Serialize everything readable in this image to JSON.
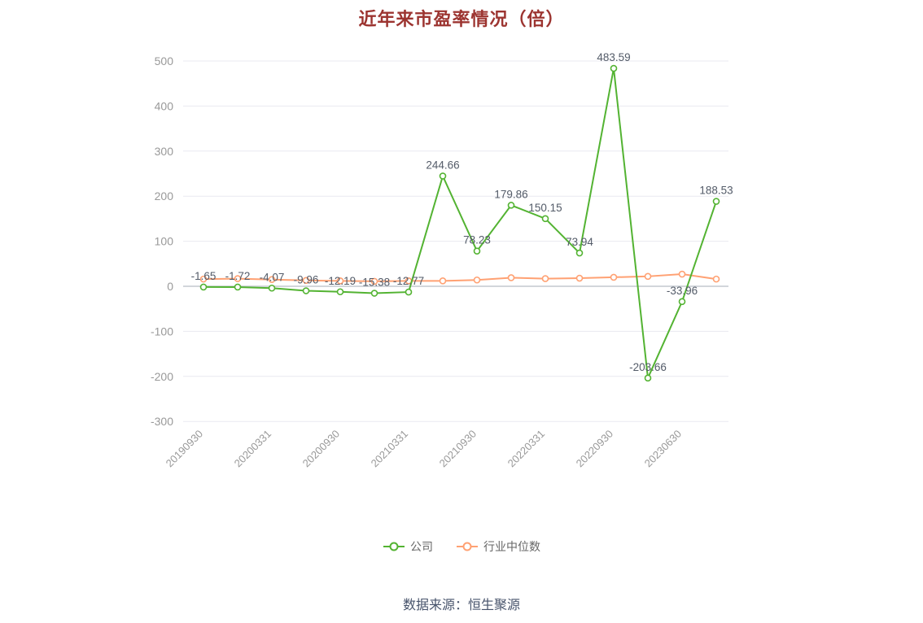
{
  "title": "近年来市盈率情况（倍）",
  "source": "数据来源：恒生聚源",
  "legend": {
    "company": "公司",
    "industry_median": "行业中位数"
  },
  "colors": {
    "title": "#9c3430",
    "company_series": "#53b332",
    "industry_series": "#ffa173",
    "axis_text": "#999999",
    "data_label": "#535b68",
    "grid_line": "#e9e9f0",
    "zero_line": "#c4c8cf",
    "legend_text": "#666666",
    "source_text": "#47536b",
    "background": "#ffffff"
  },
  "chart_data": {
    "type": "line",
    "title": "近年来市盈率情况（倍）",
    "grid": true,
    "legend_position": "bottom",
    "ylim": [
      -300,
      500
    ],
    "y_ticks": [
      500,
      400,
      300,
      200,
      100,
      0,
      -100,
      -200,
      -300
    ],
    "x_tick_labels": [
      "20190930",
      "20200331",
      "20200930",
      "20210331",
      "20210930",
      "20220331",
      "20220930",
      "20230630"
    ],
    "x_tick_indices": [
      0,
      2,
      4,
      6,
      8,
      10,
      12,
      14
    ],
    "series": [
      {
        "name": "公司",
        "color": "#53b332",
        "marker": "hollow-circle",
        "values": [
          -1.65,
          -1.72,
          -4.07,
          -9.96,
          -12.19,
          -15.38,
          -12.77,
          244.66,
          78.23,
          179.86,
          150.15,
          73.94,
          483.59,
          -203.66,
          -33.96,
          188.53
        ],
        "point_labels": [
          "-1.65",
          "-1.72",
          "-4.07",
          "-9.96",
          "-12.19",
          "-15.38",
          "-12.77",
          "244.66",
          "78.23",
          "179.86",
          "150.15",
          "73.94",
          "483.59",
          "-203.66",
          "-33.96",
          "188.53"
        ]
      },
      {
        "name": "行业中位数",
        "color": "#ffa173",
        "marker": "hollow-circle",
        "values": [
          16,
          17,
          15,
          13,
          12,
          11,
          12,
          12,
          14,
          19,
          17,
          18,
          20,
          22,
          27,
          16
        ],
        "point_labels": []
      }
    ]
  }
}
